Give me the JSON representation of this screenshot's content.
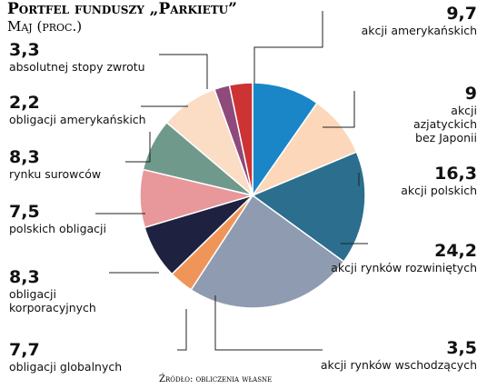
{
  "chart_data": {
    "type": "pie",
    "title": "Portfel funduszy „Parkietu”",
    "subtitle": "Maj (proc.)",
    "source": "Źródło: obliczenia własne",
    "categories": [
      "akcji amerykańskich",
      "akcji azjatyckich bez Japonii",
      "akcji polskich",
      "akcji rynków rozwiniętych",
      "akcji rynków wschodzących",
      "obligacji globalnych",
      "obligacji korporacyjnych",
      "polskich obligacji",
      "rynku surowców",
      "obligacji amerykańskich",
      "absolutnej stopy zwrotu"
    ],
    "values": [
      9.7,
      9,
      16.3,
      24.2,
      3.5,
      7.7,
      8.3,
      7.5,
      8.3,
      2.2,
      3.3
    ],
    "value_labels": [
      "9,7",
      "9",
      "16,3",
      "24,2",
      "3,5",
      "7,7",
      "8,3",
      "7,5",
      "8,3",
      "2,2",
      "3,3"
    ],
    "colors": [
      "#1a86c8",
      "#fcd7ba",
      "#2b6e8e",
      "#8f9bb0",
      "#f0955a",
      "#1e2240",
      "#e8979b",
      "#6f9a8b",
      "#fbdcc4",
      "#8d4a7a",
      "#cc3333"
    ]
  }
}
